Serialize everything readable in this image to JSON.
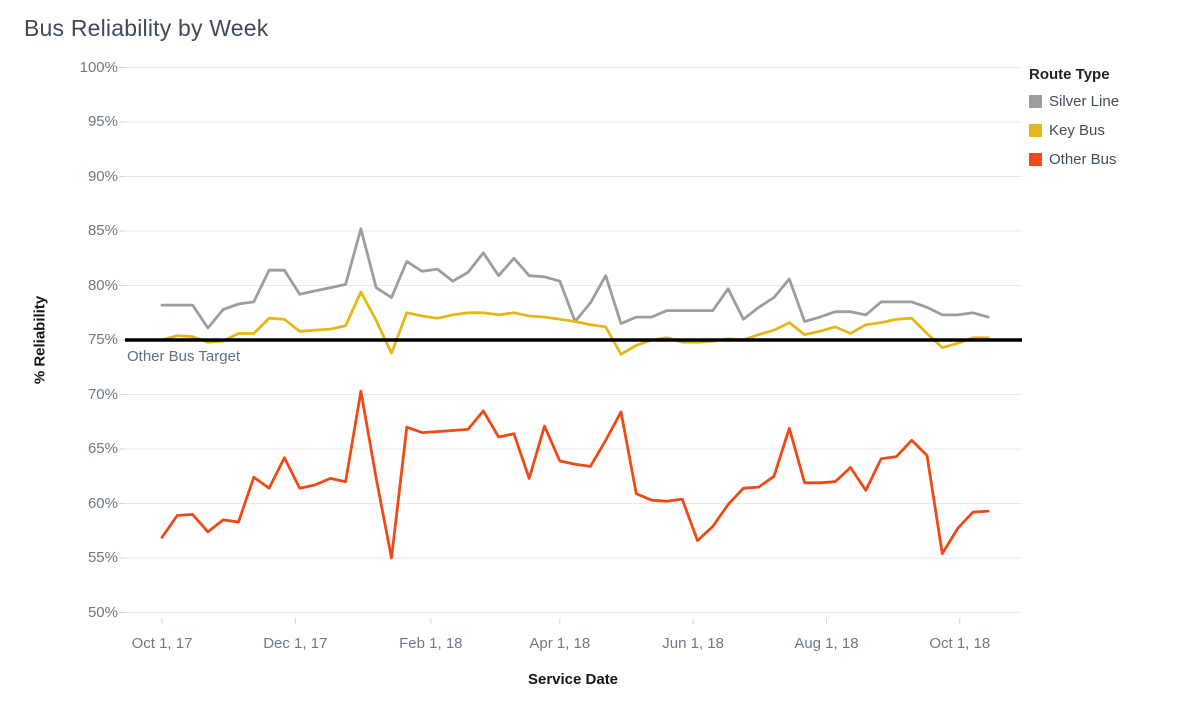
{
  "chart_data": {
    "type": "line",
    "title": "Bus Reliability by Week",
    "xlabel": "Service Date",
    "ylabel": "% Reliability",
    "legend_title": "Route Type",
    "legend_position": "top-right",
    "grid": true,
    "ylim": [
      50,
      100
    ],
    "y_tick_step": 5,
    "y_ticks": [
      "100%",
      "95%",
      "90%",
      "85%",
      "80%",
      "75%",
      "70%",
      "65%",
      "60%",
      "55%",
      "50%"
    ],
    "x_ticks": [
      "Oct 1, 17",
      "Dec 1, 17",
      "Feb 1, 18",
      "Apr 1, 18",
      "Jun 1, 18",
      "Aug 1, 18",
      "Oct 1, 18"
    ],
    "x_interval": "week",
    "reference_line": {
      "value": 75,
      "label": "Other Bus Target",
      "color": "#000000"
    },
    "x": [
      "Oct 1, 17",
      "Oct 8, 17",
      "Oct 15, 17",
      "Oct 22, 17",
      "Oct 29, 17",
      "Nov 5, 17",
      "Nov 12, 17",
      "Nov 19, 17",
      "Nov 26, 17",
      "Dec 3, 17",
      "Dec 10, 17",
      "Dec 17, 17",
      "Dec 24, 17",
      "Dec 31, 17",
      "Jan 7, 18",
      "Jan 14, 18",
      "Jan 21, 18",
      "Jan 28, 18",
      "Feb 4, 18",
      "Feb 11, 18",
      "Feb 18, 18",
      "Feb 25, 18",
      "Mar 4, 18",
      "Mar 11, 18",
      "Mar 18, 18",
      "Mar 25, 18",
      "Apr 1, 18",
      "Apr 8, 18",
      "Apr 15, 18",
      "Apr 22, 18",
      "Apr 29, 18",
      "May 6, 18",
      "May 13, 18",
      "May 20, 18",
      "May 27, 18",
      "Jun 3, 18",
      "Jun 10, 18",
      "Jun 17, 18",
      "Jun 24, 18",
      "Jul 1, 18",
      "Jul 8, 18",
      "Jul 15, 18",
      "Jul 22, 18",
      "Jul 29, 18",
      "Aug 5, 18",
      "Aug 12, 18",
      "Aug 19, 18",
      "Aug 26, 18",
      "Sep 2, 18",
      "Sep 9, 18",
      "Sep 16, 18",
      "Sep 23, 18",
      "Sep 30, 18",
      "Oct 7, 18",
      "Oct 14, 18"
    ],
    "series": [
      {
        "name": "Silver Line",
        "color": "#9d9d9d",
        "values": [
          78.2,
          78.2,
          78.2,
          76.1,
          77.8,
          78.3,
          78.5,
          81.4,
          81.4,
          79.2,
          79.5,
          79.8,
          80.1,
          85.2,
          79.8,
          78.9,
          82.2,
          81.3,
          81.5,
          80.4,
          81.2,
          83.0,
          80.9,
          82.5,
          80.9,
          80.8,
          80.4,
          76.7,
          78.4,
          80.9,
          76.5,
          77.1,
          77.1,
          77.7,
          77.7,
          77.7,
          77.7,
          79.7,
          76.9,
          78.0,
          78.9,
          80.6,
          76.7,
          77.1,
          77.6,
          77.6,
          77.3,
          78.5,
          78.5,
          78.5,
          78.0,
          77.3,
          77.3,
          77.5,
          77.1
        ]
      },
      {
        "name": "Key Bus",
        "color": "#e5b819",
        "values": [
          75.0,
          75.4,
          75.3,
          74.8,
          74.9,
          75.6,
          75.6,
          77.0,
          76.9,
          75.8,
          75.9,
          76.0,
          76.3,
          79.4,
          76.8,
          73.8,
          77.5,
          77.2,
          77.0,
          77.3,
          77.5,
          77.5,
          77.3,
          77.5,
          77.2,
          77.1,
          76.9,
          76.7,
          76.4,
          76.2,
          73.7,
          74.5,
          75.0,
          75.2,
          74.8,
          74.8,
          74.9,
          75.1,
          75.0,
          75.5,
          75.9,
          76.6,
          75.5,
          75.8,
          76.2,
          75.6,
          76.4,
          76.6,
          76.9,
          77.0,
          75.6,
          74.3,
          74.7,
          75.2,
          75.2
        ]
      },
      {
        "name": "Other Bus",
        "color": "#ef4a15",
        "values": [
          56.9,
          58.9,
          59.0,
          57.4,
          58.5,
          58.3,
          62.4,
          61.4,
          64.2,
          61.4,
          61.7,
          62.3,
          62.0,
          70.3,
          62.3,
          55.0,
          67.0,
          66.5,
          66.6,
          66.7,
          66.8,
          68.5,
          66.1,
          66.4,
          62.3,
          67.1,
          63.9,
          63.6,
          63.4,
          65.8,
          68.4,
          60.9,
          60.3,
          60.2,
          60.4,
          56.6,
          57.9,
          59.9,
          61.4,
          61.5,
          62.5,
          66.9,
          61.9,
          61.9,
          62.0,
          63.3,
          61.2,
          64.1,
          64.3,
          65.8,
          64.4,
          55.4,
          57.7,
          59.2,
          59.3
        ]
      }
    ]
  }
}
